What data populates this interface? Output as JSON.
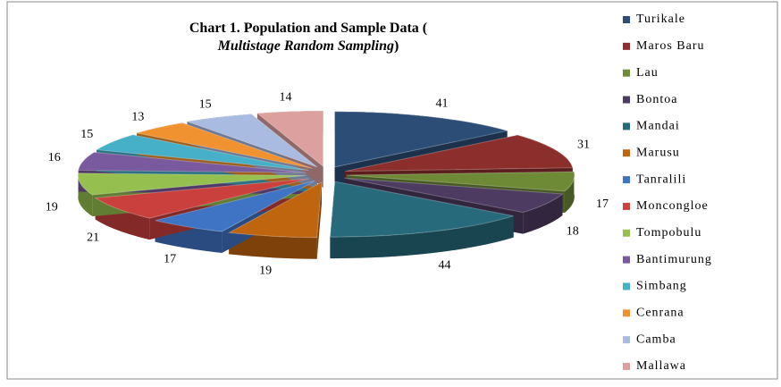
{
  "chart_data": {
    "type": "pie",
    "title": [
      "Chart 1. Population and Sample Data (",
      "Multistage Random Sampling",
      ")"
    ],
    "categories": [
      "Turikale",
      "Maros Baru",
      "Lau",
      "Bontoa",
      "Mandai",
      "Marusu",
      "Tanralili",
      "Moncongloe",
      "Tompobulu",
      "Bantimurung",
      "Simbang",
      "Cenrana",
      "Camba",
      "Mallawa"
    ],
    "values": [
      41,
      31,
      17,
      18,
      44,
      19,
      17,
      21,
      19,
      16,
      15,
      13,
      15,
      14
    ],
    "colors": [
      "#2c4d75",
      "#8c2f2c",
      "#6f8a37",
      "#4d3b62",
      "#276a7c",
      "#c0650f",
      "#3f74c4",
      "#c9403c",
      "#95c04f",
      "#7a5a9e",
      "#45b0c8",
      "#f0922f",
      "#a9bbe0",
      "#dca09e"
    ],
    "legend": "right"
  }
}
